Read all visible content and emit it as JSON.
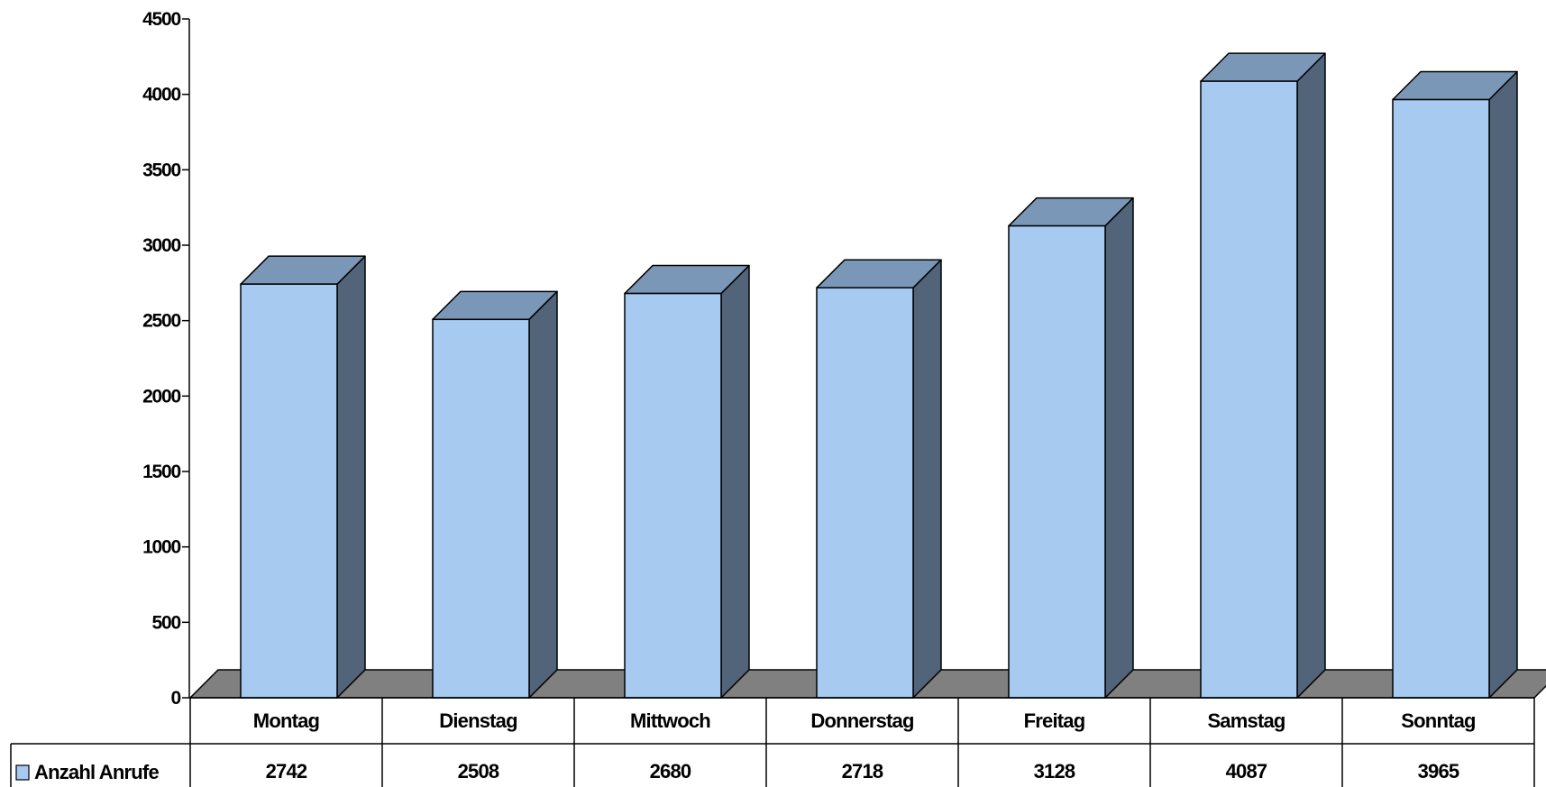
{
  "colors": {
    "bar_front": "#A6CAF0",
    "bar_top": "#7B97B7",
    "bar_side": "#526479",
    "floor": "#808080",
    "outline": "#000000"
  },
  "chart_data": {
    "type": "bar",
    "title": "",
    "xlabel": "",
    "ylabel": "",
    "ylim": [
      0,
      4500
    ],
    "yticks": [
      0,
      500,
      1000,
      1500,
      2000,
      2500,
      3000,
      3500,
      4000,
      4500
    ],
    "grid": false,
    "style": "3d-column-with-data-table",
    "categories": [
      "Montag",
      "Dienstag",
      "Mittwoch",
      "Donnerstag",
      "Freitag",
      "Samstag",
      "Sonntag"
    ],
    "series": [
      {
        "name": "Anzahl Anrufe",
        "values": [
          2742,
          2508,
          2680,
          2718,
          3128,
          4087,
          3965
        ]
      }
    ],
    "legend": "data-table"
  }
}
